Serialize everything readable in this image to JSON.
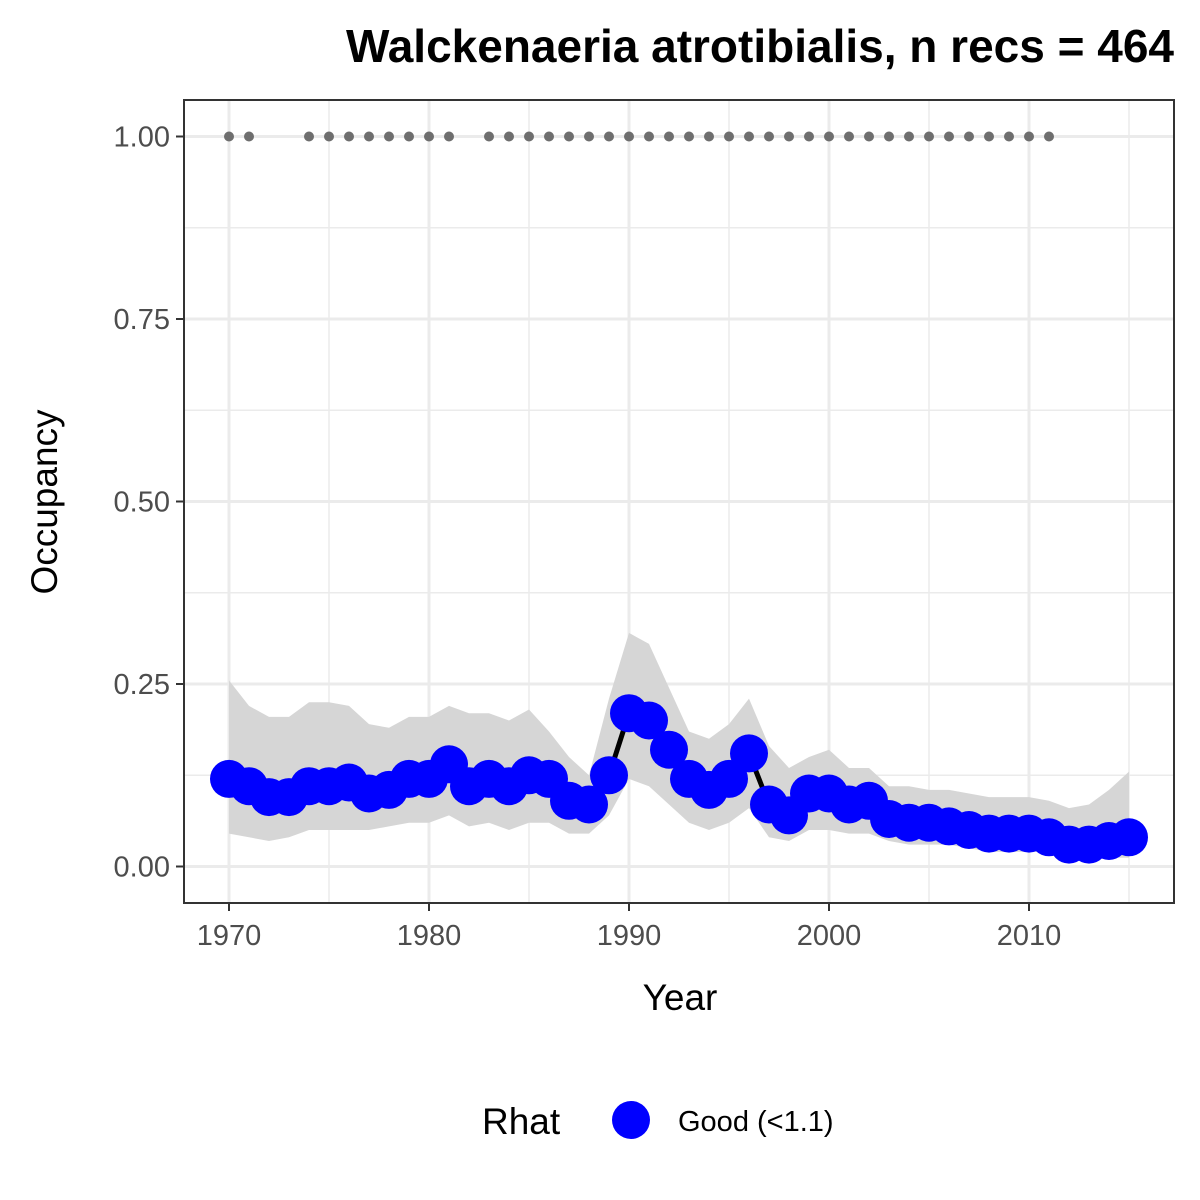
{
  "chart_data": {
    "type": "line",
    "title": "Walckenaeria atrotibialis, n recs = 464",
    "xlabel": "Year",
    "ylabel": "Occupancy",
    "xlim": [
      1967.75,
      2017.25
    ],
    "ylim": [
      -0.05,
      1.05
    ],
    "x_ticks": [
      1970,
      1980,
      1990,
      2000,
      2010
    ],
    "x_tick_labels": [
      "1970",
      "1980",
      "1990",
      "2000",
      "2010"
    ],
    "y_ticks": [
      0,
      0.25,
      0.5,
      0.75,
      1.0
    ],
    "y_tick_labels": [
      "0.00",
      "0.25",
      "0.50",
      "0.75",
      "1.00"
    ],
    "grid": true,
    "legend_position": "bottom",
    "legend": {
      "title": "Rhat",
      "entries": [
        {
          "label": "Good (<1.1)",
          "color": "#0000ff"
        }
      ]
    },
    "colors": {
      "points": "#0000ff",
      "line": "#000000",
      "ribbon": "#d6d6d6",
      "record_dots": "#6e6e6e",
      "panel_border": "#333333",
      "grid": "#ebebeb"
    },
    "years": [
      1970,
      1971,
      1972,
      1973,
      1974,
      1975,
      1976,
      1977,
      1978,
      1979,
      1980,
      1981,
      1982,
      1983,
      1984,
      1985,
      1986,
      1987,
      1988,
      1989,
      1990,
      1991,
      1992,
      1993,
      1994,
      1995,
      1996,
      1997,
      1998,
      1999,
      2000,
      2001,
      2002,
      2003,
      2004,
      2005,
      2006,
      2007,
      2008,
      2009,
      2010,
      2011,
      2012,
      2013,
      2014,
      2015
    ],
    "series": [
      {
        "name": "Good (<1.1)",
        "values": [
          0.12,
          0.11,
          0.095,
          0.095,
          0.11,
          0.11,
          0.115,
          0.1,
          0.105,
          0.12,
          0.12,
          0.14,
          0.11,
          0.12,
          0.11,
          0.125,
          0.12,
          0.09,
          0.085,
          0.125,
          0.21,
          0.2,
          0.16,
          0.12,
          0.105,
          0.12,
          0.155,
          0.085,
          0.07,
          0.1,
          0.1,
          0.085,
          0.09,
          0.065,
          0.06,
          0.06,
          0.055,
          0.05,
          0.045,
          0.045,
          0.045,
          0.04,
          0.03,
          0.03,
          0.035,
          0.04
        ],
        "lower": [
          0.045,
          0.04,
          0.035,
          0.04,
          0.05,
          0.05,
          0.05,
          0.05,
          0.055,
          0.06,
          0.06,
          0.07,
          0.055,
          0.06,
          0.05,
          0.06,
          0.06,
          0.045,
          0.045,
          0.07,
          0.12,
          0.11,
          0.085,
          0.06,
          0.05,
          0.06,
          0.08,
          0.04,
          0.035,
          0.05,
          0.05,
          0.045,
          0.045,
          0.035,
          0.03,
          0.03,
          0.03,
          0.025,
          0.02,
          0.02,
          0.02,
          0.02,
          0.015,
          0.012,
          0.012,
          0.012
        ],
        "upper": [
          0.255,
          0.22,
          0.205,
          0.205,
          0.225,
          0.225,
          0.22,
          0.195,
          0.19,
          0.205,
          0.205,
          0.22,
          0.21,
          0.21,
          0.2,
          0.215,
          0.185,
          0.15,
          0.125,
          0.23,
          0.32,
          0.305,
          0.245,
          0.185,
          0.175,
          0.195,
          0.23,
          0.165,
          0.135,
          0.15,
          0.16,
          0.135,
          0.135,
          0.11,
          0.11,
          0.105,
          0.105,
          0.1,
          0.095,
          0.095,
          0.095,
          0.09,
          0.08,
          0.085,
          0.105,
          0.13
        ]
      }
    ],
    "record_years": [
      1970,
      1971,
      1974,
      1975,
      1976,
      1977,
      1978,
      1979,
      1980,
      1981,
      1983,
      1984,
      1985,
      1986,
      1987,
      1988,
      1989,
      1990,
      1991,
      1992,
      1993,
      1994,
      1995,
      1996,
      1997,
      1998,
      1999,
      2000,
      2001,
      2002,
      2003,
      2004,
      2005,
      2006,
      2007,
      2008,
      2009,
      2010,
      2011
    ],
    "record_value": 1.0
  }
}
